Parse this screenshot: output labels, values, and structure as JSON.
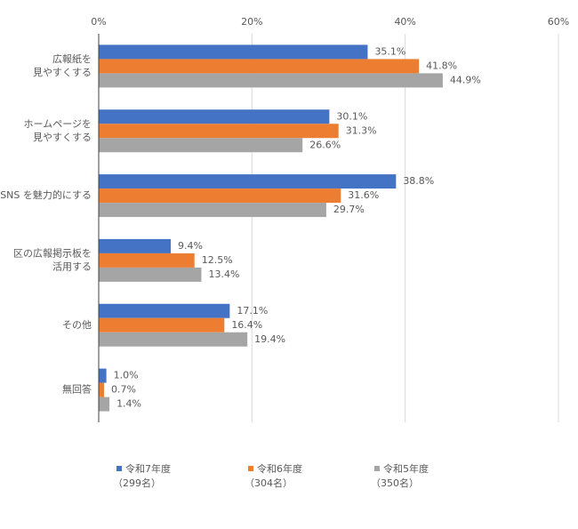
{
  "chart_data": {
    "type": "hbar",
    "categories": [
      [
        "広報紙を",
        "見やすくする"
      ],
      [
        "ホームページを",
        "見やすくする"
      ],
      [
        "SNS を魅力的にする"
      ],
      [
        "区の広報掲示板を",
        "活用する"
      ],
      [
        "その他"
      ],
      [
        "無回答"
      ]
    ],
    "series": [
      {
        "name": [
          "令和7年度",
          "（299名）"
        ],
        "color": "#4472c4",
        "values": [
          35.1,
          30.1,
          38.8,
          9.4,
          17.1,
          1.0
        ],
        "value_labels": [
          "35.1%",
          "30.1%",
          "38.8%",
          "9.4%",
          "17.1%",
          "1.0%"
        ]
      },
      {
        "name": [
          "令和6年度",
          "（304名）"
        ],
        "color": "#ed7d31",
        "values": [
          41.8,
          31.3,
          31.6,
          12.5,
          16.4,
          0.7
        ],
        "value_labels": [
          "41.8%",
          "31.3%",
          "31.6%",
          "12.5%",
          "16.4%",
          "0.7%"
        ]
      },
      {
        "name": [
          "令和5年度",
          "（350名）"
        ],
        "color": "#a5a5a5",
        "values": [
          44.9,
          26.6,
          29.7,
          13.4,
          19.4,
          1.4
        ],
        "value_labels": [
          "44.9%",
          "26.6%",
          "29.7%",
          "13.4%",
          "19.4%",
          "1.4%"
        ]
      }
    ],
    "xlim": [
      0,
      60
    ],
    "xticks": [
      {
        "value": 0,
        "label": "0%"
      },
      {
        "value": 20,
        "label": "20%"
      },
      {
        "value": 40,
        "label": "40%"
      },
      {
        "value": 60,
        "label": "60%"
      }
    ],
    "grid": true,
    "legend": "bottom"
  }
}
